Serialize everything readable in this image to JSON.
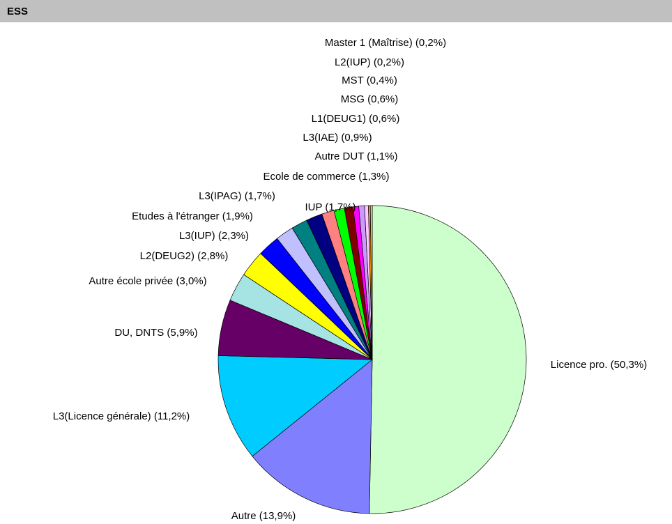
{
  "header": {
    "title": "ESS"
  },
  "chart_data": {
    "type": "pie",
    "categories": [
      "Licence pro.",
      "Autre",
      "L3(Licence générale)",
      "DU, DNTS",
      "Autre école privée",
      "L2(DEUG2)",
      "L3(IUP)",
      "Etudes à l'étranger",
      "L3(IPAG)",
      "IUP",
      "Ecole de commerce",
      "Autre DUT",
      "L3(IAE)",
      "L1(DEUG1)",
      "MSG",
      "MST",
      "L2(IUP)",
      "Master 1 (Maîtrise)"
    ],
    "values": [
      50.3,
      13.9,
      11.2,
      5.9,
      3.0,
      2.8,
      2.3,
      1.9,
      1.7,
      1.7,
      1.3,
      1.1,
      0.9,
      0.6,
      0.6,
      0.4,
      0.2,
      0.2
    ],
    "value_labels": [
      "(50,3%)",
      "(13,9%)",
      "(11,2%)",
      "(5,9%)",
      "(3,0%)",
      "(2,8%)",
      "(2,3%)",
      "(1,9%)",
      "(1,7%)",
      "(1,7%)",
      "(1,3%)",
      "(1,1%)",
      "(0,9%)",
      "(0,6%)",
      "(0,6%)",
      "(0,4%)",
      "(0,2%)",
      "(0,2%)"
    ],
    "colors": [
      "#ccffcc",
      "#8080ff",
      "#00ccff",
      "#660066",
      "#a6e3e3",
      "#ffff00",
      "#0000ff",
      "#c0c0ff",
      "#008080",
      "#000080",
      "#ff8080",
      "#00ff00",
      "#800000",
      "#ff00ff",
      "#cc99ff",
      "#ffccff",
      "#ff9900",
      "#ffcc99"
    ]
  }
}
